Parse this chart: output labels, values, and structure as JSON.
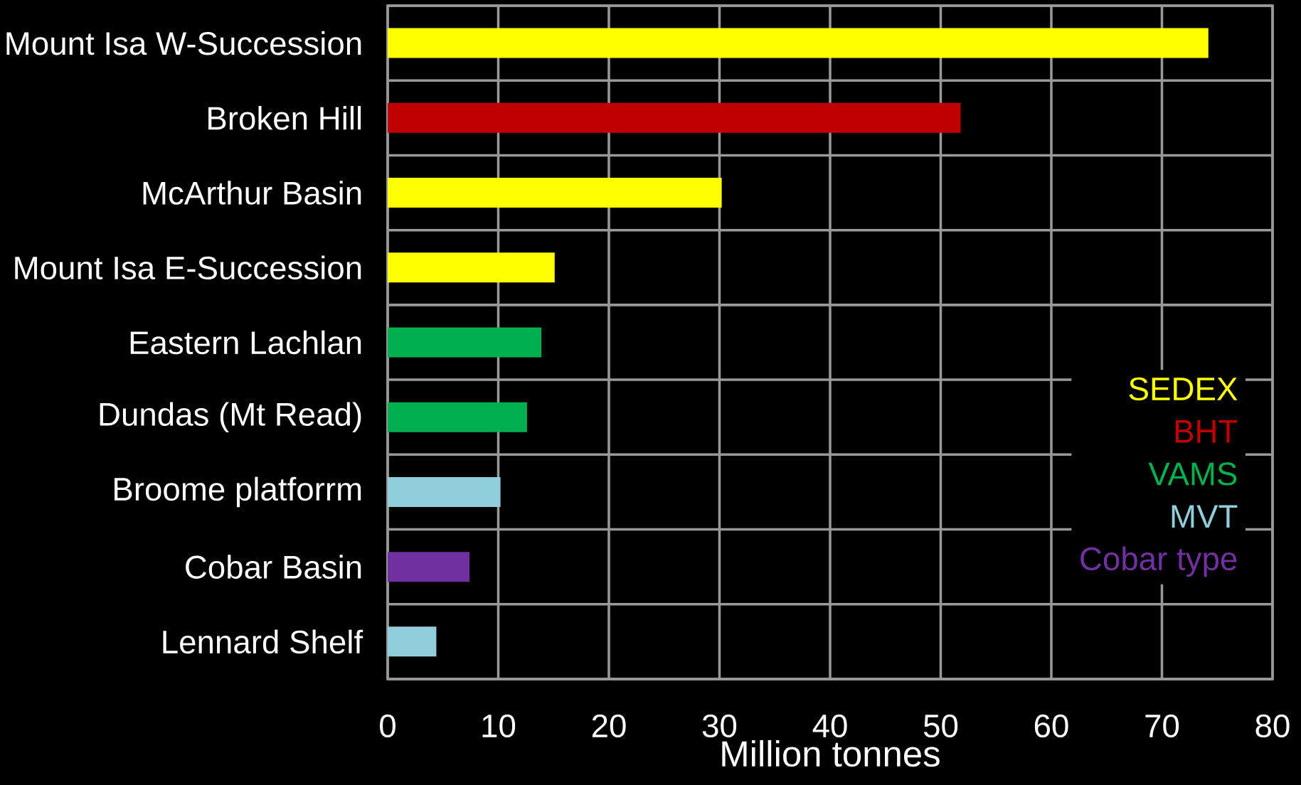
{
  "chart_data": {
    "type": "bar",
    "orientation": "horizontal",
    "stacked": true,
    "categories": [
      "Mount Isa W-Succession",
      "Broken Hill",
      "McArthur Basin",
      "Mount Isa E-Succession",
      "Eastern Lachlan",
      "Dundas (Mt Read)",
      "Broome platforrm",
      "Cobar Basin",
      "Lennard Shelf"
    ],
    "series": [
      {
        "name": "SEDEX",
        "color": "#ffff00",
        "values": [
          74.2,
          null,
          30.2,
          15.1,
          null,
          null,
          null,
          null,
          null
        ]
      },
      {
        "name": "BHT",
        "color": "#c00000",
        "values": [
          null,
          51.8,
          null,
          null,
          null,
          null,
          null,
          null,
          null
        ]
      },
      {
        "name": "VAMS",
        "color": "#00b050",
        "values": [
          null,
          null,
          null,
          null,
          13.9,
          12.6,
          null,
          null,
          null
        ]
      },
      {
        "name": "MVT",
        "color": "#92cddc",
        "values": [
          null,
          null,
          null,
          null,
          null,
          null,
          10.2,
          null,
          4.4
        ]
      },
      {
        "name": "Cobar type",
        "color": "#7030a0",
        "values": [
          null,
          null,
          null,
          null,
          null,
          null,
          null,
          7.4,
          null
        ]
      }
    ],
    "xlim": [
      0,
      80
    ],
    "xticks": [
      0,
      10,
      20,
      30,
      40,
      50,
      60,
      70,
      80
    ],
    "xlabel": "Million tonnes",
    "grid": true,
    "legend": "bottom right"
  }
}
